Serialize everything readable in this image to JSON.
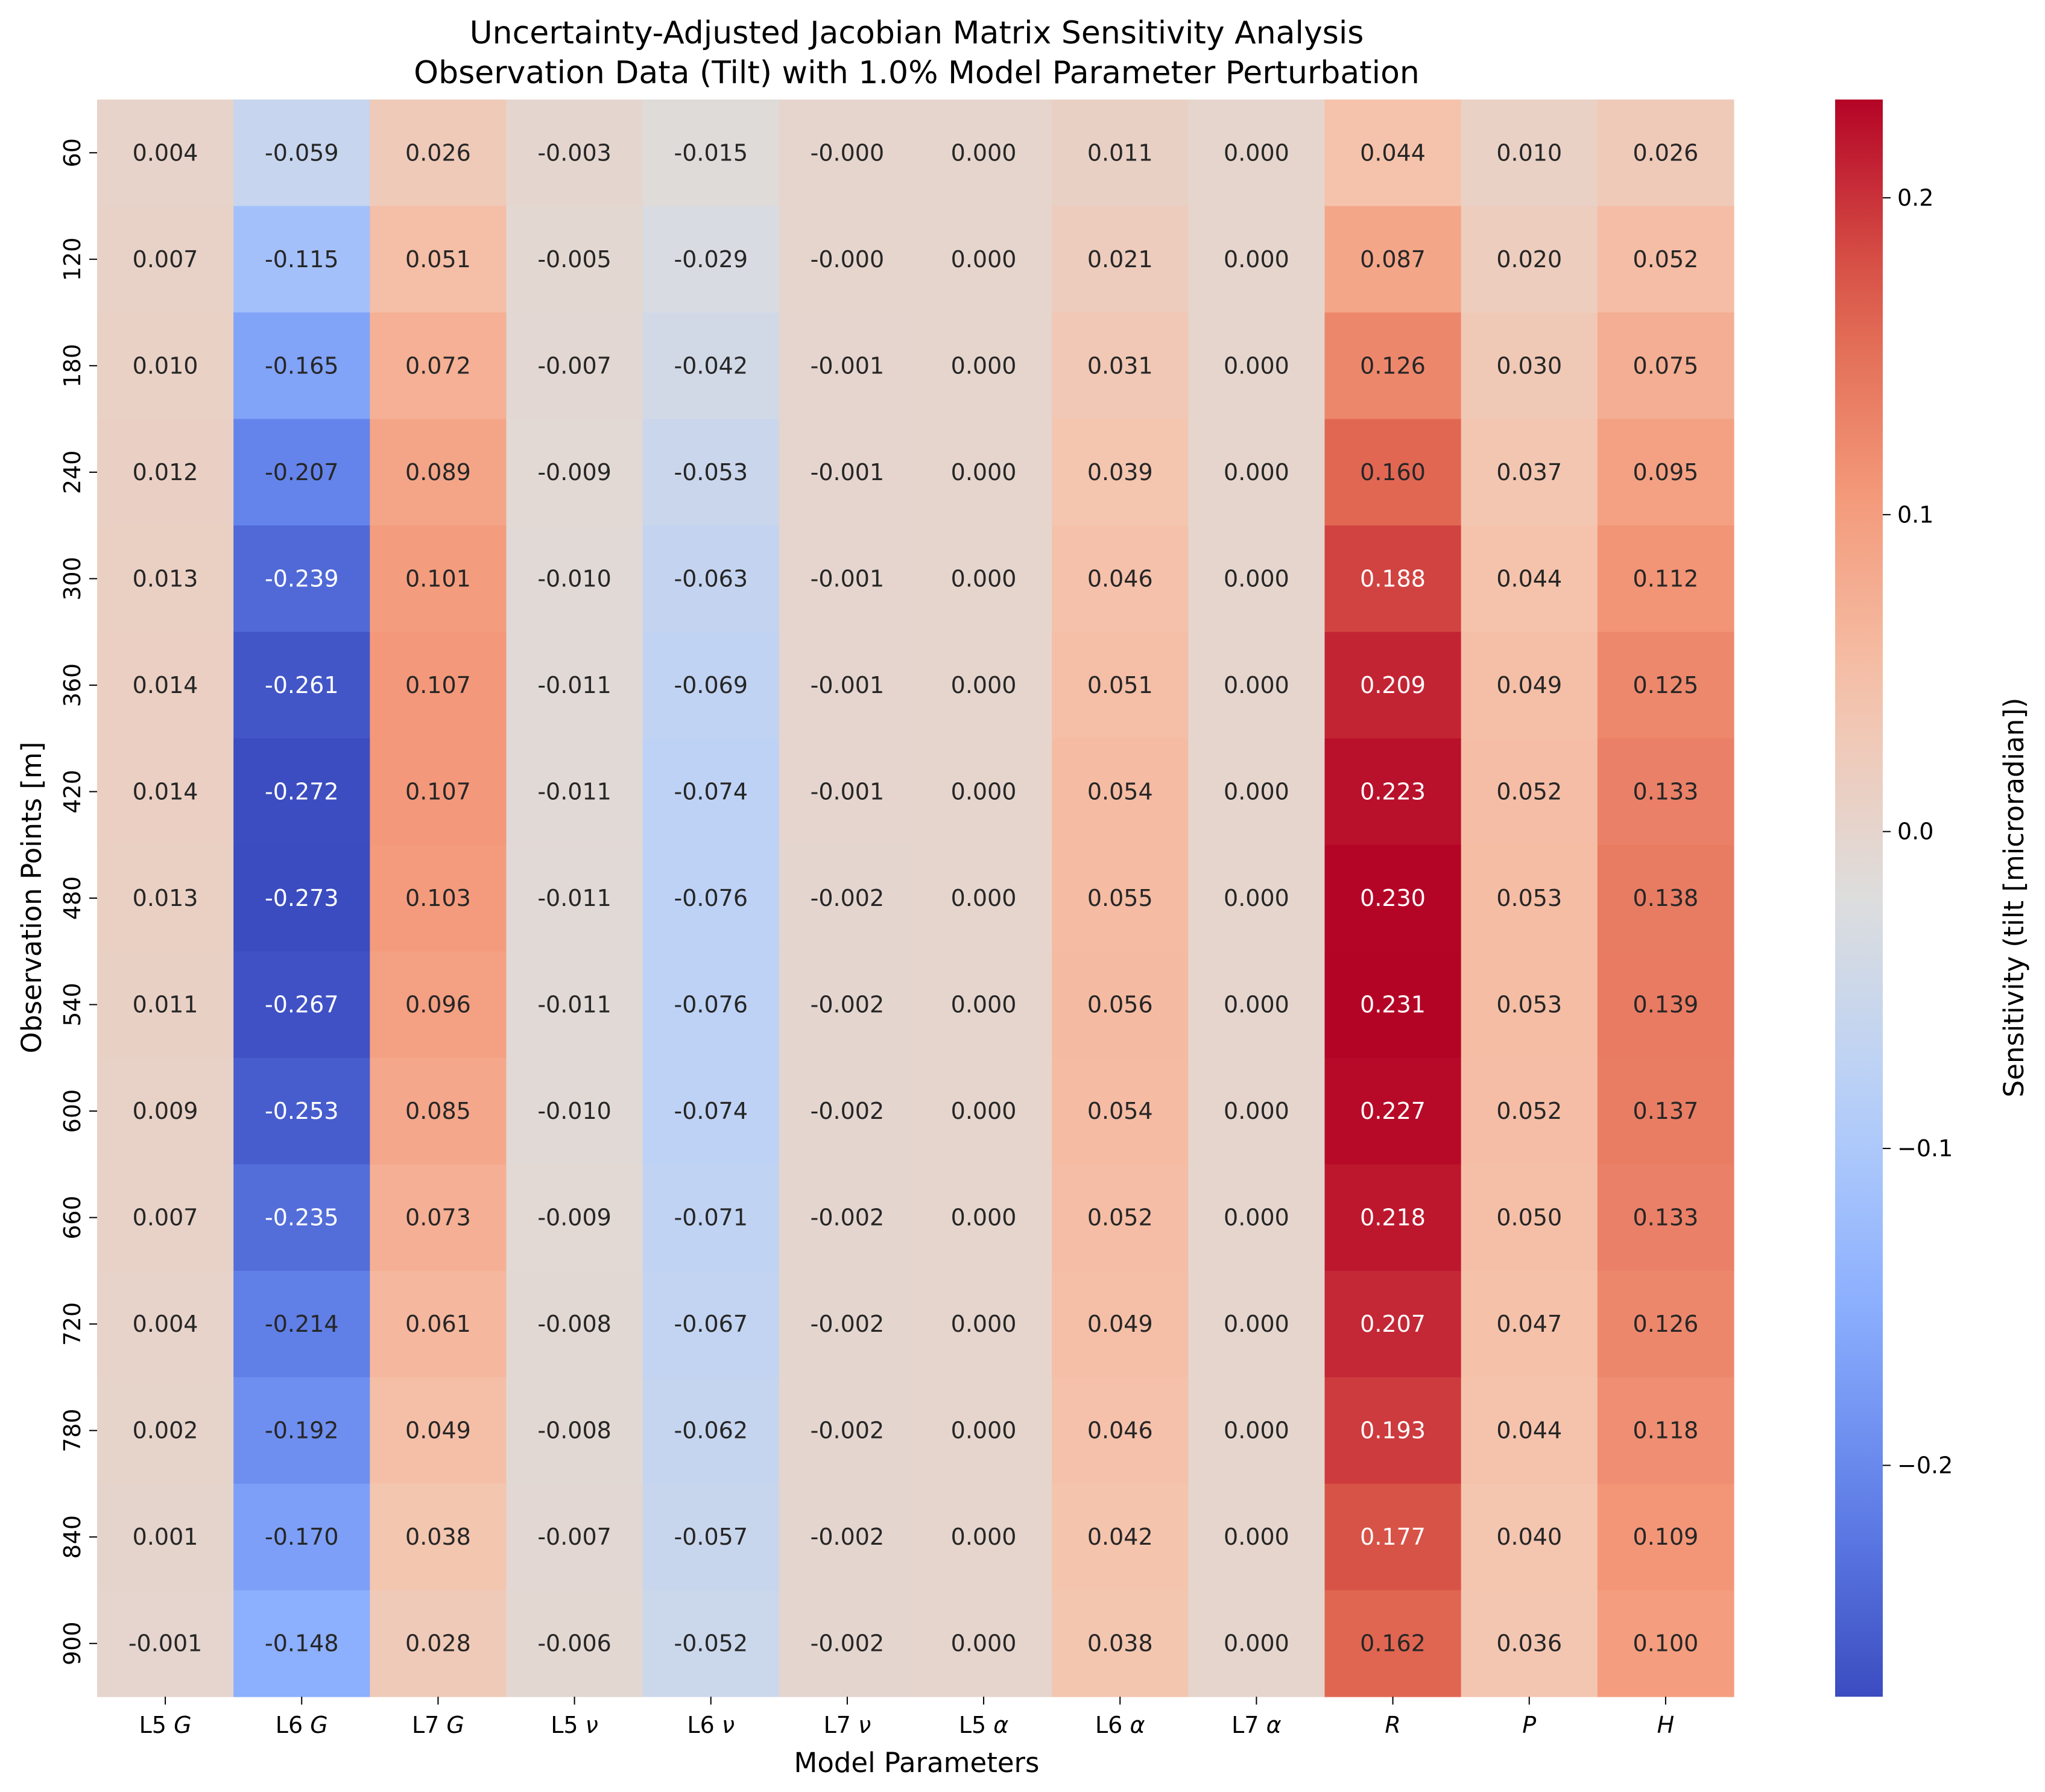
{
  "chart_data": {
    "type": "heatmap",
    "title": "Uncertainty-Adjusted Jacobian Matrix Sensitivity Analysis",
    "subtitle": "Observation Data (Tilt) with 1.0% Model Parameter Perturbation",
    "xlabel": "Model Parameters",
    "ylabel": "Observation Points [m]",
    "colorbar_label": "Sensitivity (tilt [microradian])",
    "colormap": "coolwarm",
    "color_range": [
      -0.273,
      0.231
    ],
    "colorbar_ticks": [
      {
        "value": 0.2,
        "label": "0.2"
      },
      {
        "value": 0.1,
        "label": "0.1"
      },
      {
        "value": 0.0,
        "label": "0.0"
      },
      {
        "value": -0.1,
        "label": "−0.1"
      },
      {
        "value": -0.2,
        "label": "−0.2"
      }
    ],
    "columns": [
      {
        "prefix": "L5 ",
        "symbol": "G"
      },
      {
        "prefix": "L6 ",
        "symbol": "G"
      },
      {
        "prefix": "L7 ",
        "symbol": "G"
      },
      {
        "prefix": "L5 ",
        "symbol": "ν"
      },
      {
        "prefix": "L6 ",
        "symbol": "ν"
      },
      {
        "prefix": "L7 ",
        "symbol": "ν"
      },
      {
        "prefix": "L5 ",
        "symbol": "α"
      },
      {
        "prefix": "L6 ",
        "symbol": "α"
      },
      {
        "prefix": "L7 ",
        "symbol": "α"
      },
      {
        "prefix": "",
        "symbol": "R"
      },
      {
        "prefix": "",
        "symbol": "P"
      },
      {
        "prefix": "",
        "symbol": "H"
      }
    ],
    "rows": [
      "60",
      "120",
      "180",
      "240",
      "300",
      "360",
      "420",
      "480",
      "540",
      "600",
      "660",
      "720",
      "780",
      "840",
      "900"
    ],
    "labels": [
      [
        "0.004",
        "-0.059",
        "0.026",
        "-0.003",
        "-0.015",
        "-0.000",
        "0.000",
        "0.011",
        "0.000",
        "0.044",
        "0.010",
        "0.026"
      ],
      [
        "0.007",
        "-0.115",
        "0.051",
        "-0.005",
        "-0.029",
        "-0.000",
        "0.000",
        "0.021",
        "0.000",
        "0.087",
        "0.020",
        "0.052"
      ],
      [
        "0.010",
        "-0.165",
        "0.072",
        "-0.007",
        "-0.042",
        "-0.001",
        "0.000",
        "0.031",
        "0.000",
        "0.126",
        "0.030",
        "0.075"
      ],
      [
        "0.012",
        "-0.207",
        "0.089",
        "-0.009",
        "-0.053",
        "-0.001",
        "0.000",
        "0.039",
        "0.000",
        "0.160",
        "0.037",
        "0.095"
      ],
      [
        "0.013",
        "-0.239",
        "0.101",
        "-0.010",
        "-0.063",
        "-0.001",
        "0.000",
        "0.046",
        "0.000",
        "0.188",
        "0.044",
        "0.112"
      ],
      [
        "0.014",
        "-0.261",
        "0.107",
        "-0.011",
        "-0.069",
        "-0.001",
        "0.000",
        "0.051",
        "0.000",
        "0.209",
        "0.049",
        "0.125"
      ],
      [
        "0.014",
        "-0.272",
        "0.107",
        "-0.011",
        "-0.074",
        "-0.001",
        "0.000",
        "0.054",
        "0.000",
        "0.223",
        "0.052",
        "0.133"
      ],
      [
        "0.013",
        "-0.273",
        "0.103",
        "-0.011",
        "-0.076",
        "-0.002",
        "0.000",
        "0.055",
        "0.000",
        "0.230",
        "0.053",
        "0.138"
      ],
      [
        "0.011",
        "-0.267",
        "0.096",
        "-0.011",
        "-0.076",
        "-0.002",
        "0.000",
        "0.056",
        "0.000",
        "0.231",
        "0.053",
        "0.139"
      ],
      [
        "0.009",
        "-0.253",
        "0.085",
        "-0.010",
        "-0.074",
        "-0.002",
        "0.000",
        "0.054",
        "0.000",
        "0.227",
        "0.052",
        "0.137"
      ],
      [
        "0.007",
        "-0.235",
        "0.073",
        "-0.009",
        "-0.071",
        "-0.002",
        "0.000",
        "0.052",
        "0.000",
        "0.218",
        "0.050",
        "0.133"
      ],
      [
        "0.004",
        "-0.214",
        "0.061",
        "-0.008",
        "-0.067",
        "-0.002",
        "0.000",
        "0.049",
        "0.000",
        "0.207",
        "0.047",
        "0.126"
      ],
      [
        "0.002",
        "-0.192",
        "0.049",
        "-0.008",
        "-0.062",
        "-0.002",
        "0.000",
        "0.046",
        "0.000",
        "0.193",
        "0.044",
        "0.118"
      ],
      [
        "0.001",
        "-0.170",
        "0.038",
        "-0.007",
        "-0.057",
        "-0.002",
        "0.000",
        "0.042",
        "0.000",
        "0.177",
        "0.040",
        "0.109"
      ],
      [
        "-0.001",
        "-0.148",
        "0.028",
        "-0.006",
        "-0.052",
        "-0.002",
        "0.000",
        "0.038",
        "0.000",
        "0.162",
        "0.036",
        "0.100"
      ]
    ]
  }
}
